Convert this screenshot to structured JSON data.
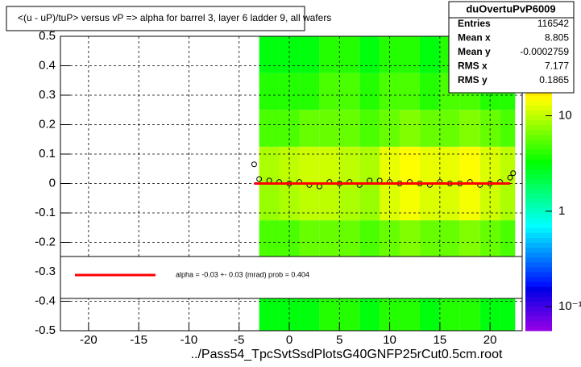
{
  "chart_data": {
    "type": "heatmap-profile",
    "title": "<(u - uP)/tuP> versus  vP => alpha for barrel 3, layer 6 ladder 9, all wafers",
    "x_label": "../Pass54_TpcSvtSsdPlotsG40GNFP25rCut0.5cm.root",
    "xlim": [
      -22.8,
      23.2
    ],
    "xticks": [
      -20,
      -15,
      -10,
      -5,
      0,
      5,
      10,
      15,
      20
    ],
    "ylim": [
      -0.5,
      0.5
    ],
    "yticks": [
      -0.5,
      -0.4,
      -0.3,
      -0.2,
      -0.1,
      0,
      0.1,
      0.2,
      0.3,
      0.4,
      0.5
    ],
    "grid": true,
    "zlim": [
      0.056,
      68
    ],
    "zlog": true,
    "zticks": [
      {
        "value": 10,
        "label": "10"
      },
      {
        "value": 1,
        "label": "1"
      },
      {
        "value": 0.1,
        "label": "10⁻¹"
      }
    ],
    "x_bins": [
      -3,
      -1,
      1,
      3,
      5,
      7,
      9,
      11,
      13,
      15,
      17,
      19,
      21,
      22.5
    ],
    "y_bins": [
      -0.5,
      -0.375,
      -0.25,
      -0.125,
      0,
      0.125,
      0.25,
      0.375,
      0.5
    ],
    "z": [
      [
        3,
        3,
        3,
        4,
        4,
        3,
        4,
        4,
        3,
        4,
        4,
        3,
        3
      ],
      [
        4,
        4,
        4,
        5,
        5,
        4,
        5,
        5,
        4,
        5,
        5,
        4,
        4
      ],
      [
        5,
        5,
        6,
        6,
        6,
        5,
        6,
        7,
        6,
        6,
        7,
        6,
        5
      ],
      [
        8,
        9,
        10,
        10,
        9,
        8,
        12,
        14,
        12,
        12,
        14,
        11,
        9
      ],
      [
        9,
        10,
        11,
        11,
        10,
        9,
        13,
        15,
        13,
        13,
        15,
        12,
        10
      ],
      [
        5,
        5,
        6,
        6,
        6,
        5,
        6,
        7,
        6,
        6,
        7,
        6,
        5
      ],
      [
        4,
        4,
        4,
        5,
        5,
        4,
        5,
        5,
        4,
        5,
        5,
        4,
        4
      ],
      [
        3,
        3,
        3,
        4,
        4,
        3,
        4,
        4,
        3,
        4,
        4,
        3,
        3
      ]
    ],
    "profile": {
      "color": "#000000",
      "x": [
        -3.5,
        -3,
        -2,
        -1,
        0,
        1,
        2,
        3,
        4,
        5,
        6,
        7,
        8,
        9,
        10,
        11,
        12,
        13,
        14,
        15,
        16,
        17,
        18,
        19,
        20,
        21,
        22,
        22.3
      ],
      "values": [
        0.065,
        0.015,
        0.01,
        0.005,
        0.0,
        0.005,
        -0.005,
        -0.01,
        0.005,
        0.0,
        0.005,
        -0.005,
        0.01,
        0.01,
        0.005,
        0.0,
        0.005,
        0.0,
        -0.005,
        0.005,
        0.0,
        0.0,
        0.005,
        -0.005,
        0.0,
        0.005,
        0.02,
        0.035
      ]
    },
    "fit": {
      "color": "#ff0000",
      "x": [
        -3.5,
        22
      ],
      "values": [
        0,
        0
      ]
    },
    "legend_text": "alpha =   -0.03 +-  0.03 (mrad) prob = 0.404",
    "stats": {
      "title": "duOvertuPvP6009",
      "rows": [
        {
          "name": "Entries",
          "value": "116542"
        },
        {
          "name": "Mean x",
          "value": "8.805"
        },
        {
          "name": "Mean y",
          "value": "-0.0002759"
        },
        {
          "name": "RMS x",
          "value": "7.177"
        },
        {
          "name": "RMS y",
          "value": "0.1865"
        }
      ]
    }
  }
}
